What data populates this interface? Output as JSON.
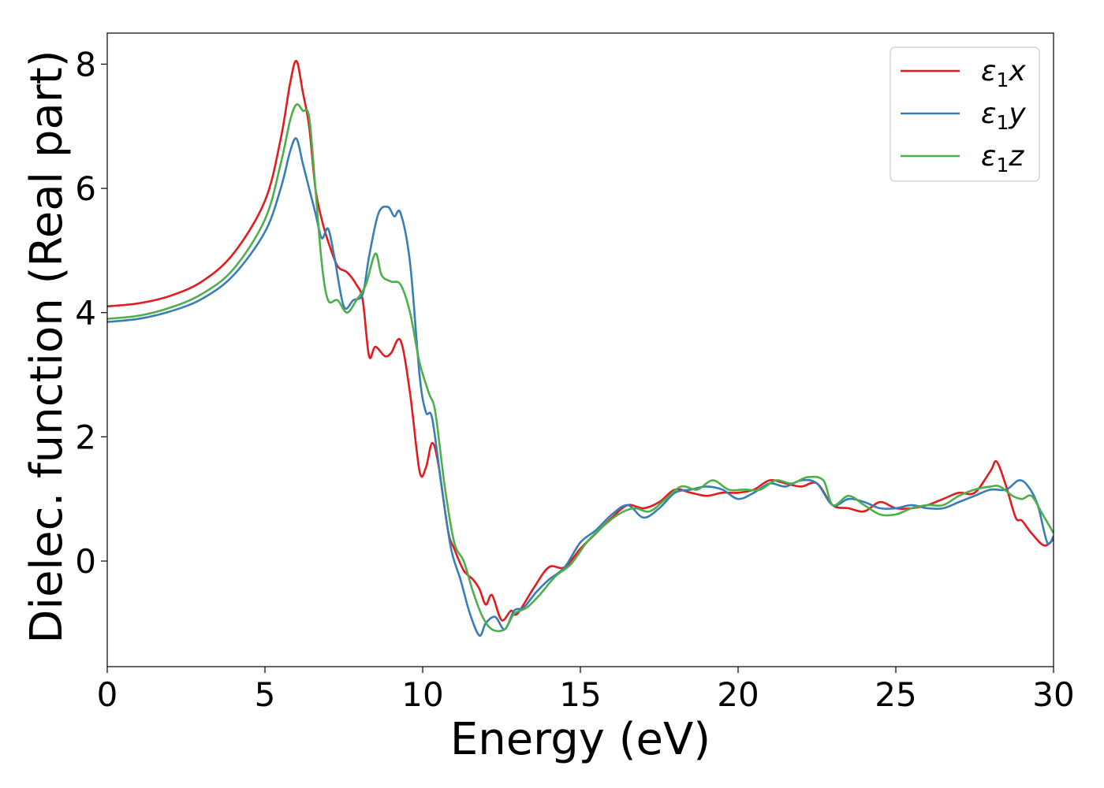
{
  "chart_data": {
    "type": "line",
    "xlabel": "Energy (eV)",
    "ylabel": "Dielec. function (Real part)",
    "xlim": [
      0,
      30
    ],
    "ylim": [
      -1.7,
      8.5
    ],
    "xticks": [
      0,
      5,
      10,
      15,
      20,
      25,
      30
    ],
    "yticks": [
      0,
      2,
      4,
      6,
      8
    ],
    "grid": false,
    "legend_position": "top-right",
    "series": [
      {
        "name": "ε1x",
        "legend_base": "ε",
        "legend_sub": "1",
        "legend_var": "x",
        "color": "#e41a1c",
        "points": [
          [
            0,
            4.1
          ],
          [
            1,
            4.15
          ],
          [
            2,
            4.27
          ],
          [
            3,
            4.5
          ],
          [
            4,
            4.95
          ],
          [
            5,
            5.8
          ],
          [
            5.5,
            6.8
          ],
          [
            5.8,
            7.7
          ],
          [
            6.0,
            8.05
          ],
          [
            6.2,
            7.55
          ],
          [
            6.4,
            7.0
          ],
          [
            6.6,
            6.0
          ],
          [
            6.8,
            5.5
          ],
          [
            7.0,
            5.15
          ],
          [
            7.3,
            4.75
          ],
          [
            7.6,
            4.65
          ],
          [
            7.9,
            4.45
          ],
          [
            8.1,
            4.2
          ],
          [
            8.3,
            3.3
          ],
          [
            8.5,
            3.45
          ],
          [
            8.8,
            3.3
          ],
          [
            9.0,
            3.35
          ],
          [
            9.3,
            3.55
          ],
          [
            9.6,
            2.7
          ],
          [
            9.9,
            1.45
          ],
          [
            10.1,
            1.5
          ],
          [
            10.3,
            1.9
          ],
          [
            10.5,
            1.55
          ],
          [
            10.8,
            0.5
          ],
          [
            11.0,
            0.2
          ],
          [
            11.3,
            -0.15
          ],
          [
            11.6,
            -0.3
          ],
          [
            11.8,
            -0.45
          ],
          [
            12.0,
            -0.7
          ],
          [
            12.2,
            -0.55
          ],
          [
            12.5,
            -0.95
          ],
          [
            12.8,
            -0.8
          ],
          [
            13.0,
            -0.85
          ],
          [
            13.5,
            -0.45
          ],
          [
            14.0,
            -0.1
          ],
          [
            14.5,
            -0.1
          ],
          [
            15.0,
            0.2
          ],
          [
            15.5,
            0.45
          ],
          [
            16.0,
            0.7
          ],
          [
            16.5,
            0.9
          ],
          [
            17.0,
            0.85
          ],
          [
            17.5,
            0.95
          ],
          [
            18.0,
            1.15
          ],
          [
            18.5,
            1.1
          ],
          [
            19.0,
            1.05
          ],
          [
            19.5,
            1.1
          ],
          [
            20.0,
            1.1
          ],
          [
            20.5,
            1.15
          ],
          [
            21.0,
            1.3
          ],
          [
            21.5,
            1.25
          ],
          [
            22.0,
            1.2
          ],
          [
            22.5,
            1.25
          ],
          [
            23.0,
            0.9
          ],
          [
            23.5,
            0.85
          ],
          [
            24.0,
            0.8
          ],
          [
            24.5,
            0.95
          ],
          [
            25.0,
            0.85
          ],
          [
            25.5,
            0.85
          ],
          [
            26.0,
            0.9
          ],
          [
            26.5,
            1.0
          ],
          [
            27.0,
            1.1
          ],
          [
            27.5,
            1.1
          ],
          [
            28.0,
            1.45
          ],
          [
            28.2,
            1.6
          ],
          [
            28.5,
            1.2
          ],
          [
            28.8,
            0.7
          ],
          [
            29.0,
            0.65
          ],
          [
            29.3,
            0.45
          ],
          [
            29.7,
            0.25
          ],
          [
            30.0,
            0.35
          ]
        ]
      },
      {
        "name": "ε1y",
        "legend_base": "ε",
        "legend_sub": "1",
        "legend_var": "y",
        "color": "#377eb8",
        "points": [
          [
            0,
            3.85
          ],
          [
            1,
            3.9
          ],
          [
            2,
            4.02
          ],
          [
            3,
            4.22
          ],
          [
            4,
            4.6
          ],
          [
            5,
            5.3
          ],
          [
            5.5,
            6.0
          ],
          [
            5.8,
            6.6
          ],
          [
            6.0,
            6.8
          ],
          [
            6.2,
            6.4
          ],
          [
            6.4,
            6.0
          ],
          [
            6.6,
            5.6
          ],
          [
            6.8,
            5.2
          ],
          [
            7.0,
            5.35
          ],
          [
            7.2,
            4.9
          ],
          [
            7.5,
            4.1
          ],
          [
            7.8,
            4.2
          ],
          [
            8.1,
            4.3
          ],
          [
            8.3,
            4.9
          ],
          [
            8.6,
            5.6
          ],
          [
            8.9,
            5.7
          ],
          [
            9.1,
            5.55
          ],
          [
            9.3,
            5.6
          ],
          [
            9.6,
            4.8
          ],
          [
            9.9,
            3.0
          ],
          [
            10.1,
            2.4
          ],
          [
            10.3,
            2.3
          ],
          [
            10.6,
            1.2
          ],
          [
            10.9,
            0.2
          ],
          [
            11.2,
            -0.3
          ],
          [
            11.5,
            -0.85
          ],
          [
            11.8,
            -1.2
          ],
          [
            12.0,
            -1.0
          ],
          [
            12.3,
            -0.9
          ],
          [
            12.6,
            -1.1
          ],
          [
            12.9,
            -0.8
          ],
          [
            13.2,
            -0.75
          ],
          [
            13.6,
            -0.5
          ],
          [
            14.0,
            -0.3
          ],
          [
            14.5,
            -0.1
          ],
          [
            15.0,
            0.3
          ],
          [
            15.5,
            0.5
          ],
          [
            16.0,
            0.75
          ],
          [
            16.5,
            0.9
          ],
          [
            17.0,
            0.7
          ],
          [
            17.5,
            0.85
          ],
          [
            18.0,
            1.1
          ],
          [
            18.5,
            1.15
          ],
          [
            19.0,
            1.2
          ],
          [
            19.5,
            1.15
          ],
          [
            20.0,
            1.0
          ],
          [
            20.5,
            1.1
          ],
          [
            21.0,
            1.25
          ],
          [
            21.5,
            1.2
          ],
          [
            22.0,
            1.3
          ],
          [
            22.5,
            1.25
          ],
          [
            23.0,
            0.9
          ],
          [
            23.5,
            1.0
          ],
          [
            24.0,
            0.95
          ],
          [
            24.5,
            0.85
          ],
          [
            25.0,
            0.85
          ],
          [
            25.5,
            0.9
          ],
          [
            26.0,
            0.85
          ],
          [
            26.5,
            0.85
          ],
          [
            27.0,
            0.95
          ],
          [
            27.5,
            1.05
          ],
          [
            28.0,
            1.15
          ],
          [
            28.5,
            1.15
          ],
          [
            28.9,
            1.3
          ],
          [
            29.2,
            1.2
          ],
          [
            29.5,
            0.9
          ],
          [
            29.8,
            0.3
          ],
          [
            30.0,
            0.4
          ]
        ]
      },
      {
        "name": "ε1z",
        "legend_base": "ε",
        "legend_sub": "1",
        "legend_var": "z",
        "color": "#4daf4a",
        "points": [
          [
            0,
            3.9
          ],
          [
            1,
            3.95
          ],
          [
            2,
            4.08
          ],
          [
            3,
            4.3
          ],
          [
            4,
            4.7
          ],
          [
            5,
            5.5
          ],
          [
            5.5,
            6.4
          ],
          [
            5.8,
            7.1
          ],
          [
            6.0,
            7.35
          ],
          [
            6.2,
            7.25
          ],
          [
            6.4,
            7.15
          ],
          [
            6.6,
            6.0
          ],
          [
            6.8,
            4.8
          ],
          [
            7.0,
            4.2
          ],
          [
            7.3,
            4.2
          ],
          [
            7.6,
            4.0
          ],
          [
            7.9,
            4.2
          ],
          [
            8.2,
            4.45
          ],
          [
            8.5,
            4.95
          ],
          [
            8.7,
            4.6
          ],
          [
            9.0,
            4.5
          ],
          [
            9.3,
            4.45
          ],
          [
            9.6,
            4.0
          ],
          [
            9.9,
            3.2
          ],
          [
            10.2,
            2.7
          ],
          [
            10.4,
            2.4
          ],
          [
            10.7,
            1.2
          ],
          [
            11.0,
            0.3
          ],
          [
            11.3,
            0.0
          ],
          [
            11.6,
            -0.5
          ],
          [
            11.9,
            -0.9
          ],
          [
            12.2,
            -1.1
          ],
          [
            12.6,
            -1.1
          ],
          [
            12.9,
            -0.85
          ],
          [
            13.3,
            -0.75
          ],
          [
            13.7,
            -0.55
          ],
          [
            14.2,
            -0.25
          ],
          [
            14.7,
            -0.05
          ],
          [
            15.2,
            0.3
          ],
          [
            15.7,
            0.55
          ],
          [
            16.2,
            0.75
          ],
          [
            16.7,
            0.85
          ],
          [
            17.2,
            0.8
          ],
          [
            17.7,
            1.0
          ],
          [
            18.2,
            1.2
          ],
          [
            18.7,
            1.15
          ],
          [
            19.2,
            1.3
          ],
          [
            19.7,
            1.15
          ],
          [
            20.2,
            1.15
          ],
          [
            20.7,
            1.15
          ],
          [
            21.2,
            1.3
          ],
          [
            21.7,
            1.25
          ],
          [
            22.2,
            1.35
          ],
          [
            22.7,
            1.3
          ],
          [
            23.0,
            0.9
          ],
          [
            23.5,
            1.05
          ],
          [
            24.0,
            0.9
          ],
          [
            24.5,
            0.75
          ],
          [
            25.0,
            0.75
          ],
          [
            25.5,
            0.85
          ],
          [
            26.0,
            0.9
          ],
          [
            26.5,
            0.9
          ],
          [
            27.0,
            1.05
          ],
          [
            27.5,
            1.15
          ],
          [
            28.0,
            1.2
          ],
          [
            28.3,
            1.2
          ],
          [
            28.7,
            1.05
          ],
          [
            29.0,
            1.0
          ],
          [
            29.3,
            1.05
          ],
          [
            29.6,
            0.8
          ],
          [
            30.0,
            0.45
          ]
        ]
      }
    ]
  }
}
